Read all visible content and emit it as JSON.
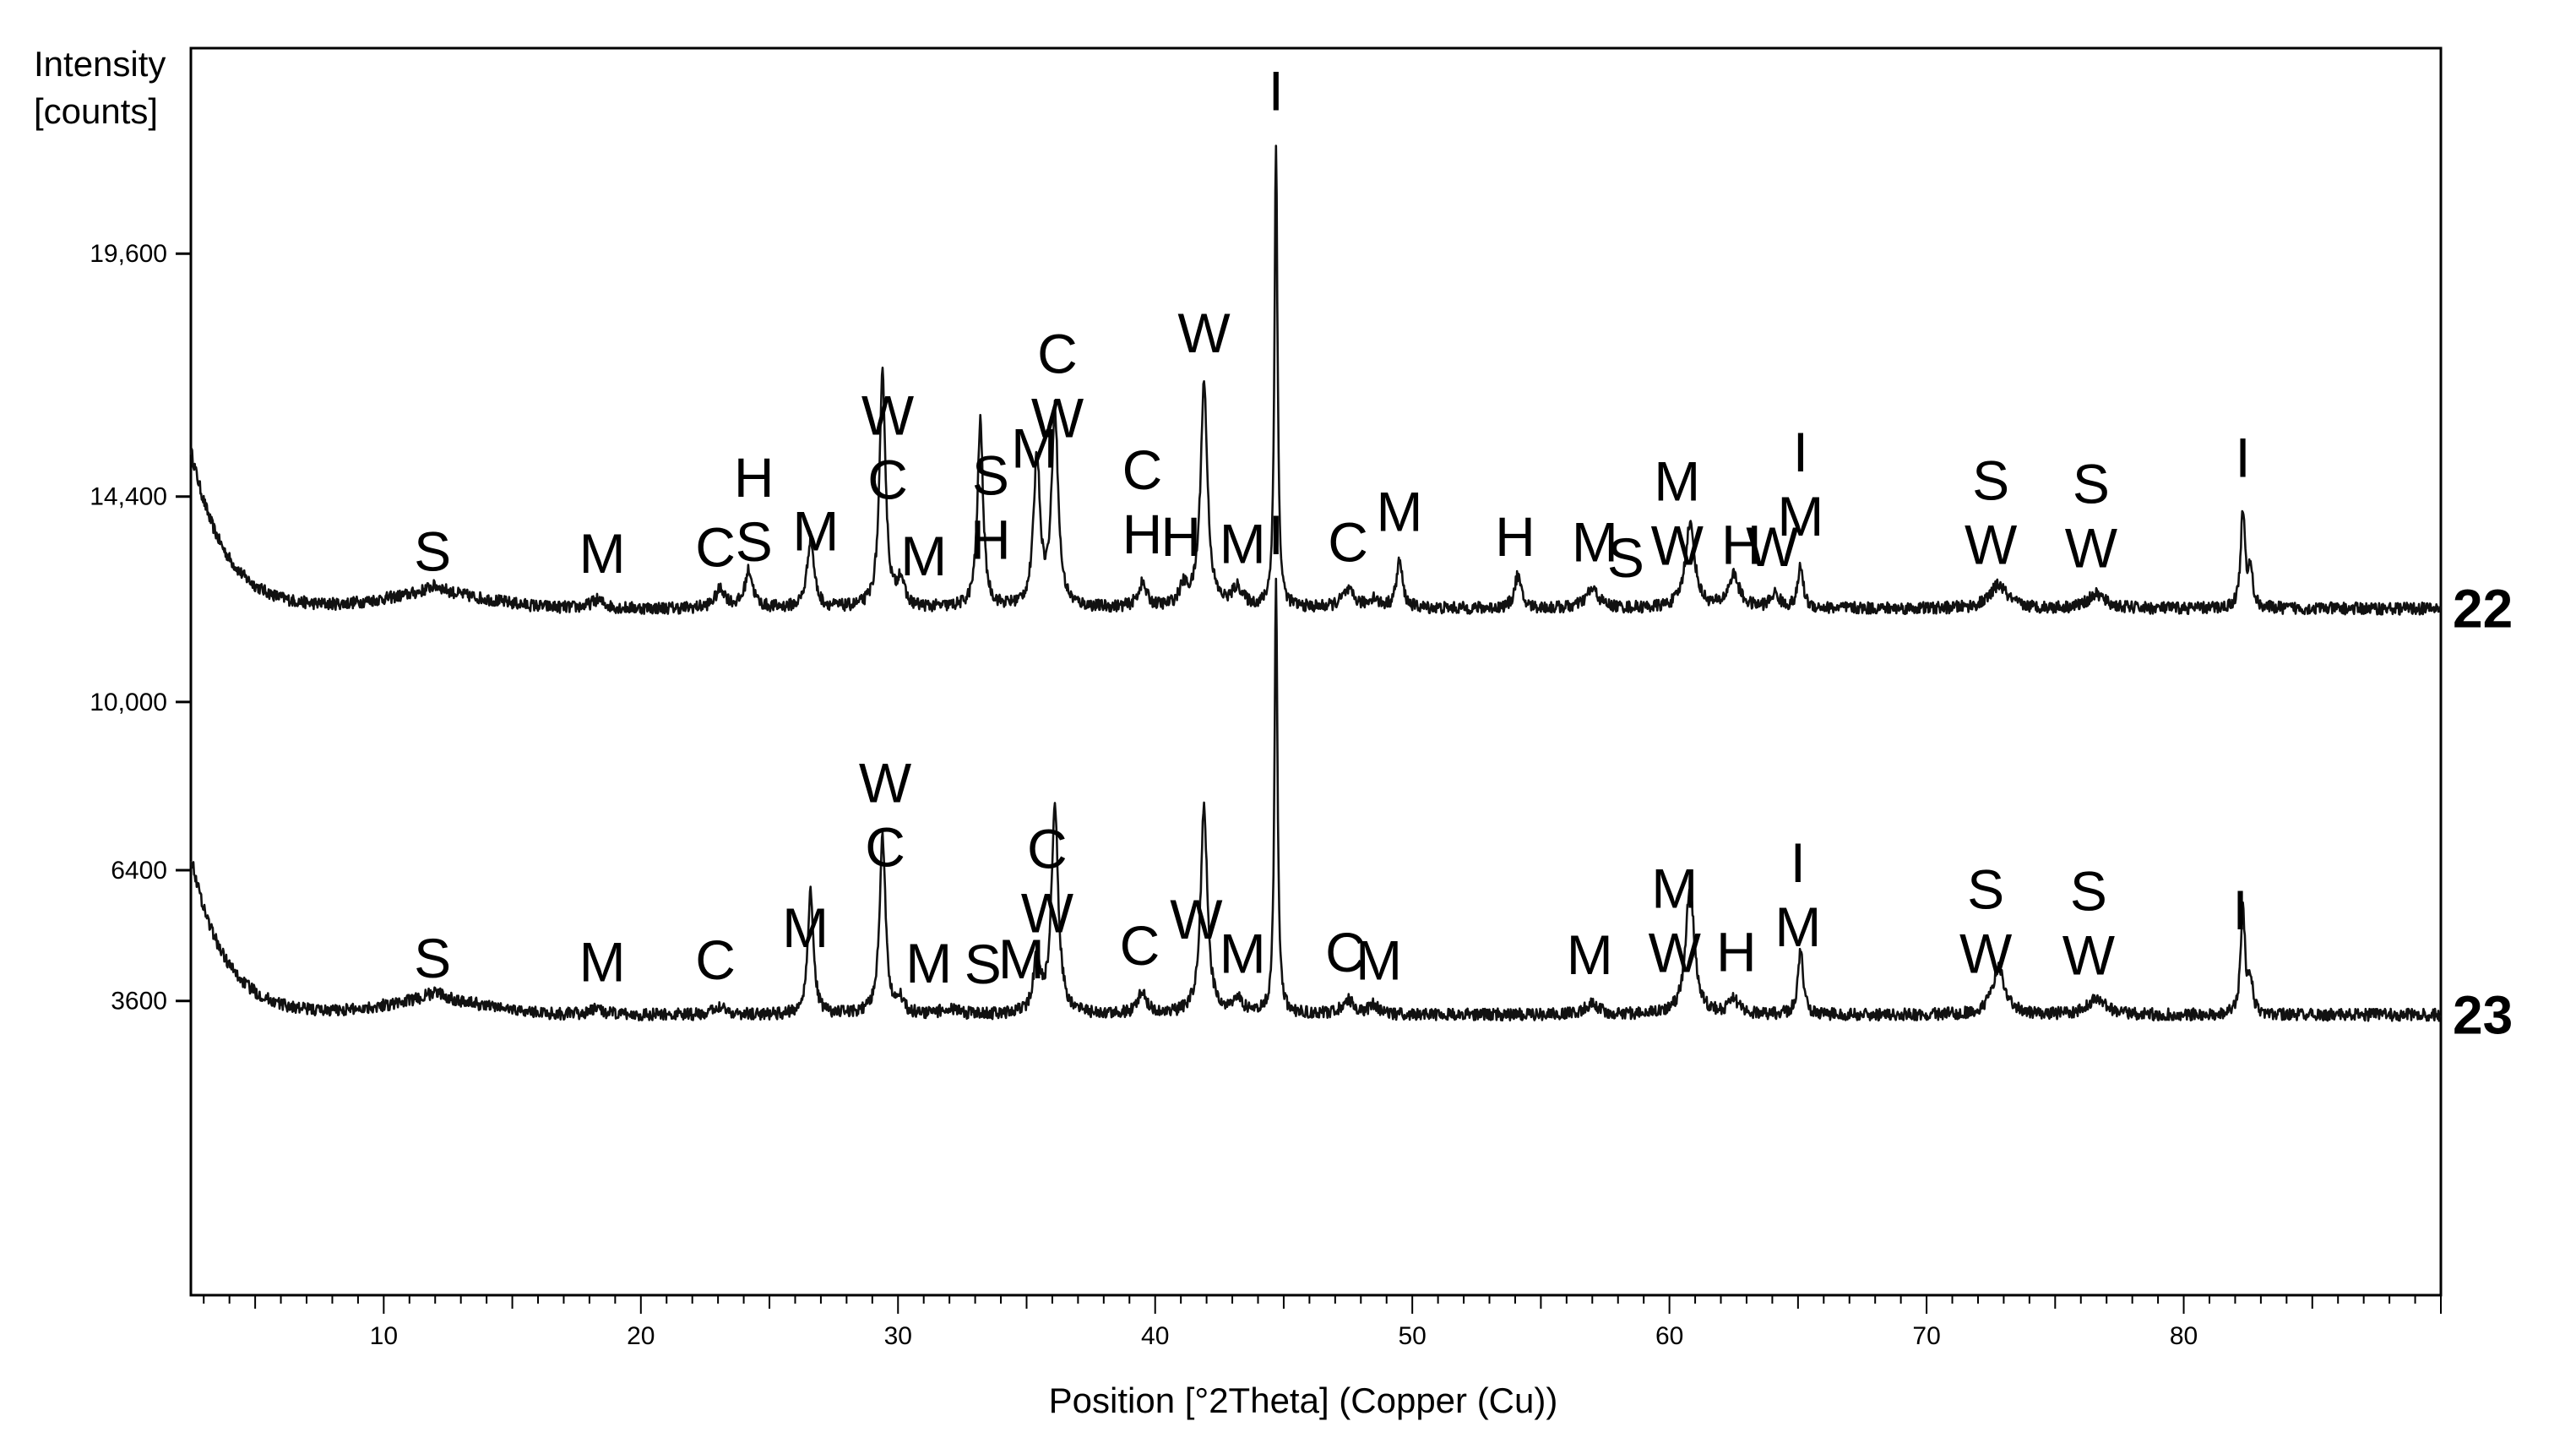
{
  "chart_data": {
    "type": "line",
    "y_axis_title": [
      "Intensity",
      "[counts]"
    ],
    "xlabel": "Position [°2Theta] (Copper (Cu))",
    "xlim": [
      2.5,
      90
    ],
    "ylim": [
      -2700,
      24000
    ],
    "x_ticks": [
      10,
      20,
      30,
      40,
      50,
      60,
      70,
      80
    ],
    "y_ticks": [
      {
        "value": 3600,
        "label": "3600"
      },
      {
        "value": 6400,
        "label": "6400"
      },
      {
        "value": 10000,
        "label": "10,000"
      },
      {
        "value": 14400,
        "label": "14,400"
      },
      {
        "value": 19600,
        "label": "19,600"
      }
    ],
    "series": [
      {
        "name": "22",
        "baseline": 12000,
        "peaks": [
          [
            12,
            180,
            0.5
          ],
          [
            18.3,
            180,
            0.3
          ],
          [
            23.1,
            400,
            0.25
          ],
          [
            24.2,
            800,
            0.18
          ],
          [
            26.6,
            1500,
            0.16
          ],
          [
            29.4,
            5000,
            0.14
          ],
          [
            30.1,
            600,
            0.15
          ],
          [
            33.2,
            4000,
            0.13
          ],
          [
            35.4,
            3200,
            0.15
          ],
          [
            36.1,
            4200,
            0.15
          ],
          [
            39.5,
            500,
            0.2
          ],
          [
            41.1,
            400,
            0.2
          ],
          [
            41.9,
            4800,
            0.16
          ],
          [
            43.2,
            400,
            0.25
          ],
          [
            44.7,
            10000,
            0.07
          ],
          [
            47.5,
            350,
            0.3
          ],
          [
            48.5,
            200,
            0.2
          ],
          [
            49.5,
            1000,
            0.14
          ],
          [
            54.1,
            700,
            0.15
          ],
          [
            57,
            400,
            0.3
          ],
          [
            60.8,
            1800,
            0.22
          ],
          [
            62.5,
            700,
            0.25
          ],
          [
            64.1,
            300,
            0.2
          ],
          [
            65.1,
            900,
            0.12
          ],
          [
            72.8,
            500,
            0.4
          ],
          [
            76.6,
            300,
            0.4
          ],
          [
            82.3,
            2100,
            0.1
          ],
          [
            82.6,
            800,
            0.1
          ]
        ]
      },
      {
        "name": "23",
        "baseline": 3300,
        "peaks": [
          [
            12,
            170,
            0.5
          ],
          [
            18.3,
            120,
            0.3
          ],
          [
            23.1,
            200,
            0.25
          ],
          [
            26.6,
            2700,
            0.13
          ],
          [
            29.4,
            3800,
            0.14
          ],
          [
            30.1,
            300,
            0.15
          ],
          [
            32,
            150,
            0.3
          ],
          [
            35.4,
            1200,
            0.15
          ],
          [
            36.1,
            4400,
            0.16
          ],
          [
            39.5,
            500,
            0.2
          ],
          [
            41.9,
            4400,
            0.16
          ],
          [
            43.2,
            300,
            0.25
          ],
          [
            44.7,
            9200,
            0.07
          ],
          [
            47.5,
            300,
            0.3
          ],
          [
            48.5,
            200,
            0.2
          ],
          [
            57,
            250,
            0.3
          ],
          [
            60.8,
            2800,
            0.2
          ],
          [
            62.5,
            300,
            0.25
          ],
          [
            65.1,
            1400,
            0.12
          ],
          [
            72.8,
            1000,
            0.3
          ],
          [
            76.6,
            350,
            0.4
          ],
          [
            82.3,
            2300,
            0.1
          ],
          [
            82.6,
            700,
            0.1
          ]
        ]
      }
    ],
    "annotations": [
      {
        "series": "22",
        "labels": [
          {
            "x": 11.9,
            "text": [
              "S"
            ]
          },
          {
            "x": 18.5,
            "text": [
              "M"
            ]
          },
          {
            "x": 22.9,
            "text": [
              "C"
            ]
          },
          {
            "x": 24.4,
            "text": [
              "H",
              "S"
            ]
          },
          {
            "x": 26.8,
            "text": [
              "M"
            ]
          },
          {
            "x": 29.6,
            "text": [
              "W",
              "C"
            ]
          },
          {
            "x": 31.0,
            "text": [
              "M"
            ]
          },
          {
            "x": 33.6,
            "text": [
              "S",
              "H"
            ]
          },
          {
            "x": 35.3,
            "text": [
              "M"
            ]
          },
          {
            "x": 36.2,
            "text": [
              "C",
              "W"
            ]
          },
          {
            "x": 39.5,
            "text": [
              "C",
              "H"
            ]
          },
          {
            "x": 41.0,
            "text": [
              "H"
            ]
          },
          {
            "x": 41.9,
            "text": [
              "W"
            ]
          },
          {
            "x": 43.4,
            "text": [
              "M"
            ]
          },
          {
            "x": 44.7,
            "text": [
              "I"
            ]
          },
          {
            "x": 47.5,
            "text": [
              "C"
            ]
          },
          {
            "x": 49.5,
            "text": [
              "M"
            ]
          },
          {
            "x": 54.0,
            "text": [
              "H"
            ]
          },
          {
            "x": 57.1,
            "text": [
              "M"
            ]
          },
          {
            "x": 58.3,
            "text": [
              "S"
            ]
          },
          {
            "x": 60.3,
            "text": [
              "M",
              "W"
            ]
          },
          {
            "x": 62.8,
            "text": [
              "H"
            ]
          },
          {
            "x": 64.0,
            "text": [
              "W"
            ]
          },
          {
            "x": 65.1,
            "text": [
              "I",
              "M"
            ]
          },
          {
            "x": 72.5,
            "text": [
              "S",
              "W"
            ]
          },
          {
            "x": 76.4,
            "text": [
              "S",
              "W"
            ]
          },
          {
            "x": 82.3,
            "text": [
              "I"
            ]
          }
        ]
      },
      {
        "series": "23",
        "labels": [
          {
            "x": 11.9,
            "text": [
              "S"
            ]
          },
          {
            "x": 18.5,
            "text": [
              "M"
            ]
          },
          {
            "x": 22.9,
            "text": [
              "C"
            ]
          },
          {
            "x": 26.4,
            "text": [
              "M"
            ]
          },
          {
            "x": 29.5,
            "text": [
              "W",
              "C"
            ]
          },
          {
            "x": 31.2,
            "text": [
              "M"
            ]
          },
          {
            "x": 33.3,
            "text": [
              "S"
            ]
          },
          {
            "x": 34.8,
            "text": [
              "M"
            ]
          },
          {
            "x": 35.8,
            "text": [
              "C",
              "W"
            ]
          },
          {
            "x": 39.4,
            "text": [
              "C"
            ]
          },
          {
            "x": 41.6,
            "text": [
              "W"
            ]
          },
          {
            "x": 43.4,
            "text": [
              "M"
            ]
          },
          {
            "x": 44.7,
            "text": [
              "I"
            ]
          },
          {
            "x": 47.4,
            "text": [
              "C"
            ]
          },
          {
            "x": 48.7,
            "text": [
              "M"
            ]
          },
          {
            "x": 56.9,
            "text": [
              "M"
            ]
          },
          {
            "x": 60.2,
            "text": [
              "M",
              "W"
            ]
          },
          {
            "x": 62.6,
            "text": [
              "H"
            ]
          },
          {
            "x": 65.0,
            "text": [
              "I",
              "M"
            ]
          },
          {
            "x": 72.3,
            "text": [
              "S",
              "W"
            ]
          },
          {
            "x": 76.3,
            "text": [
              "S",
              "W"
            ]
          },
          {
            "x": 82.2,
            "text": [
              "I"
            ]
          }
        ]
      }
    ],
    "colors": {
      "line": "#111111",
      "axis": "#000000",
      "background": "#ffffff"
    }
  }
}
